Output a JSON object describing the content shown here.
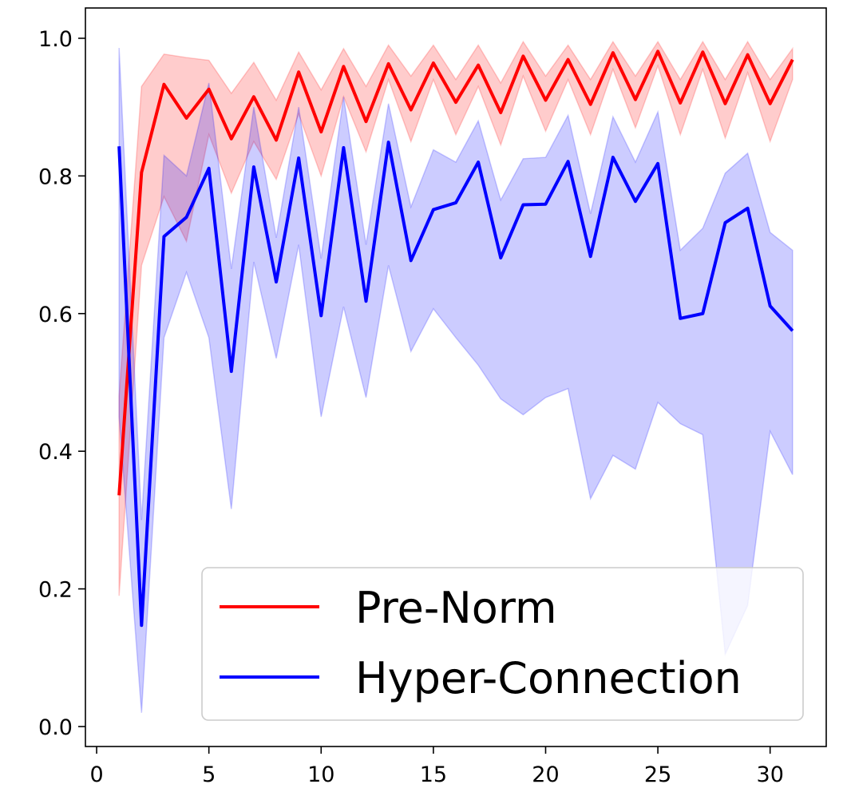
{
  "chart_data": {
    "type": "line",
    "title": "",
    "xlabel": "",
    "ylabel": "",
    "xlim": [
      -0.5,
      32.5
    ],
    "ylim": [
      -0.029,
      1.044
    ],
    "grid": false,
    "legend_placement": "lower-right",
    "x_ticks": [
      "0",
      "5",
      "10",
      "15",
      "20",
      "25",
      "30"
    ],
    "y_ticks": [
      "0.0",
      "0.2",
      "0.4",
      "0.6",
      "0.8",
      "1.0"
    ],
    "x": [
      1,
      2,
      3,
      4,
      5,
      6,
      7,
      8,
      9,
      10,
      11,
      12,
      13,
      14,
      15,
      16,
      17,
      18,
      19,
      20,
      21,
      22,
      23,
      24,
      25,
      26,
      27,
      28,
      29,
      30,
      31
    ],
    "series": [
      {
        "name": "Pre-Norm",
        "color": "#ff0000",
        "values": [
          0.336,
          0.805,
          0.933,
          0.884,
          0.926,
          0.854,
          0.915,
          0.852,
          0.951,
          0.864,
          0.959,
          0.879,
          0.963,
          0.896,
          0.964,
          0.907,
          0.961,
          0.892,
          0.974,
          0.91,
          0.969,
          0.904,
          0.979,
          0.911,
          0.981,
          0.906,
          0.98,
          0.905,
          0.976,
          0.905,
          0.969
        ],
        "upper": [
          0.48,
          0.93,
          0.977,
          0.972,
          0.968,
          0.92,
          0.965,
          0.91,
          0.98,
          0.925,
          0.985,
          0.93,
          0.99,
          0.945,
          0.99,
          0.94,
          0.99,
          0.935,
          0.995,
          0.945,
          0.99,
          0.94,
          0.995,
          0.945,
          0.995,
          0.94,
          0.995,
          0.94,
          0.995,
          0.94,
          0.985
        ],
        "lower": [
          0.19,
          0.67,
          0.77,
          0.705,
          0.86,
          0.775,
          0.85,
          0.795,
          0.89,
          0.8,
          0.915,
          0.835,
          0.94,
          0.85,
          0.94,
          0.86,
          0.93,
          0.845,
          0.945,
          0.865,
          0.94,
          0.86,
          0.955,
          0.87,
          0.96,
          0.86,
          0.955,
          0.855,
          0.95,
          0.85,
          0.94
        ]
      },
      {
        "name": "Hyper-Connection",
        "color": "#0000ff",
        "values": [
          0.843,
          0.147,
          0.712,
          0.74,
          0.811,
          0.516,
          0.813,
          0.646,
          0.826,
          0.597,
          0.841,
          0.618,
          0.849,
          0.677,
          0.751,
          0.761,
          0.82,
          0.681,
          0.758,
          0.759,
          0.821,
          0.683,
          0.827,
          0.763,
          0.818,
          0.593,
          0.6,
          0.732,
          0.753,
          0.611,
          0.575
        ],
        "upper": [
          0.986,
          0.3,
          0.83,
          0.8,
          0.935,
          0.665,
          0.9,
          0.71,
          0.9,
          0.68,
          0.915,
          0.7,
          0.905,
          0.755,
          0.838,
          0.82,
          0.88,
          0.765,
          0.825,
          0.827,
          0.888,
          0.745,
          0.886,
          0.82,
          0.893,
          0.692,
          0.724,
          0.804,
          0.833,
          0.718,
          0.692
        ],
        "lower": [
          0.45,
          0.02,
          0.565,
          0.66,
          0.565,
          0.316,
          0.675,
          0.535,
          0.7,
          0.45,
          0.61,
          0.478,
          0.67,
          0.545,
          0.607,
          0.565,
          0.525,
          0.476,
          0.453,
          0.478,
          0.491,
          0.331,
          0.394,
          0.374,
          0.471,
          0.44,
          0.424,
          0.105,
          0.176,
          0.429,
          0.366
        ]
      }
    ]
  }
}
